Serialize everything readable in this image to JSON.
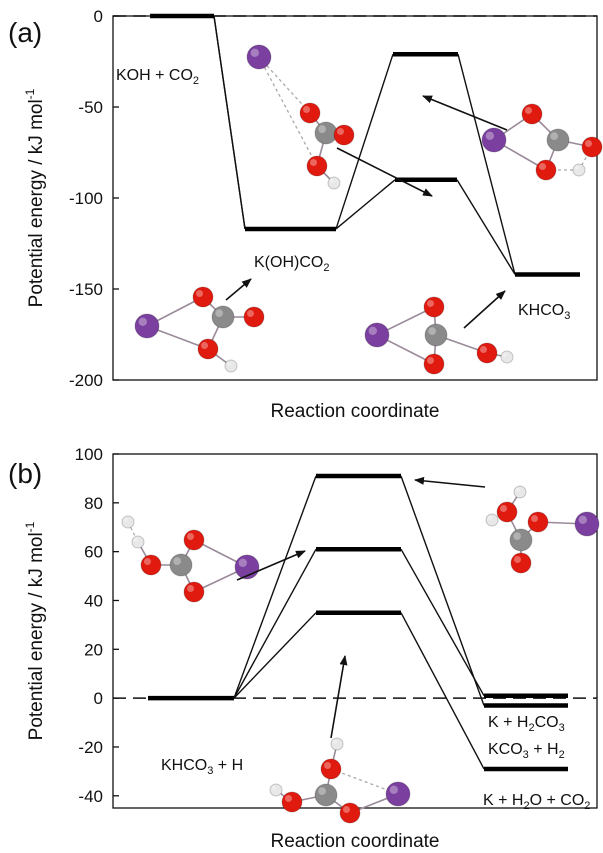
{
  "chart_data": [
    {
      "type": "line",
      "panel_label": "(a)",
      "xlabel": "Reaction coordinate",
      "ylabel": "Potential energy / kJ mol",
      "ylabel_sup": "-1",
      "ylim": [
        -200,
        0
      ],
      "yticks": [
        0,
        -50,
        -100,
        -150,
        -200
      ],
      "reference_line": 0,
      "levels": [
        {
          "label": "KOH + CO",
          "sub": "2",
          "tail": "",
          "y": 0
        },
        {
          "label": "K(OH)CO",
          "sub": "2",
          "tail": "",
          "y": -117
        },
        {
          "label": "",
          "sub": "",
          "tail": "",
          "y": -21
        },
        {
          "label": "",
          "sub": "",
          "tail": "",
          "y": -90
        },
        {
          "label": "KHCO",
          "sub": "3",
          "tail": "",
          "y": -142
        }
      ],
      "paths": [
        [
          0,
          1,
          2,
          4
        ],
        [
          0,
          1,
          3,
          4
        ]
      ]
    },
    {
      "type": "line",
      "panel_label": "(b)",
      "xlabel": "Reaction coordinate",
      "ylabel": "Potential energy / kJ mol",
      "ylabel_sup": "-1",
      "ylim": [
        -45,
        100
      ],
      "yticks": [
        100,
        80,
        60,
        40,
        20,
        0,
        -20,
        -40
      ],
      "reference_line": 0,
      "levels": [
        {
          "label": "KHCO",
          "sub": "3",
          "tail": " + H",
          "y": 0
        },
        {
          "label": "",
          "sub": "",
          "tail": "",
          "y": 91
        },
        {
          "label": "",
          "sub": "",
          "tail": "",
          "y": 61
        },
        {
          "label": "",
          "sub": "",
          "tail": "",
          "y": 35
        },
        {
          "label": "K + H",
          "sub": "2",
          "tail": "CO",
          "sub2": "3",
          "y": 1
        },
        {
          "label": "KCO",
          "sub": "3",
          "tail": " + H",
          "sub2": "2",
          "y": -3
        },
        {
          "label": "K + H",
          "sub": "2",
          "tail": "O + CO",
          "sub2": "2",
          "y": -29
        }
      ],
      "paths": [
        [
          0,
          1,
          5
        ],
        [
          0,
          2,
          4
        ],
        [
          0,
          3,
          6
        ]
      ]
    }
  ]
}
